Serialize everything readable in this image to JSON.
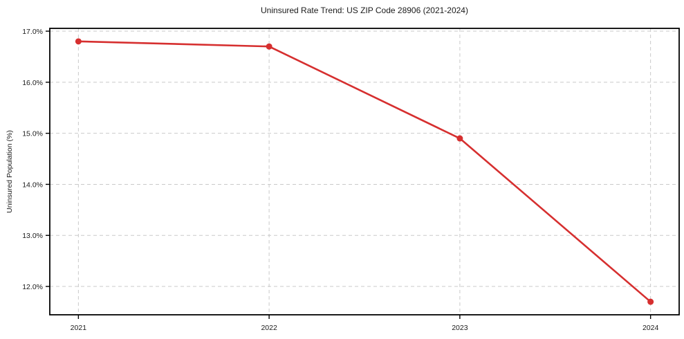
{
  "chart_data": {
    "type": "line",
    "title": "Uninsured Rate Trend: US ZIP Code 28906 (2021-2024)",
    "xlabel": "",
    "ylabel": "Uninsured Population (%)",
    "x": [
      2021,
      2022,
      2023,
      2024
    ],
    "series": [
      {
        "name": "Uninsured Population (%)",
        "values": [
          16.8,
          16.7,
          14.9,
          11.7
        ]
      }
    ],
    "xticks": [
      2021,
      2022,
      2023,
      2024
    ],
    "xtick_labels": [
      "2021",
      "2022",
      "2023",
      "2024"
    ],
    "yticks": [
      12,
      13,
      14,
      15,
      16,
      17
    ],
    "ytick_labels": [
      "12.0%",
      "13.0%",
      "14.0%",
      "15.0%",
      "16.0%",
      "17.0%"
    ],
    "xlim": [
      2020.85,
      2024.15
    ],
    "ylim": [
      11.445,
      17.055
    ],
    "grid": true,
    "legend": false,
    "line_color": "#d62f2f",
    "marker_color": "#d62f2f",
    "grid_color": "#c9c9c9",
    "spine_color": "#000000",
    "text_color": "#1a1a1a",
    "background_color": "#ffffff"
  }
}
